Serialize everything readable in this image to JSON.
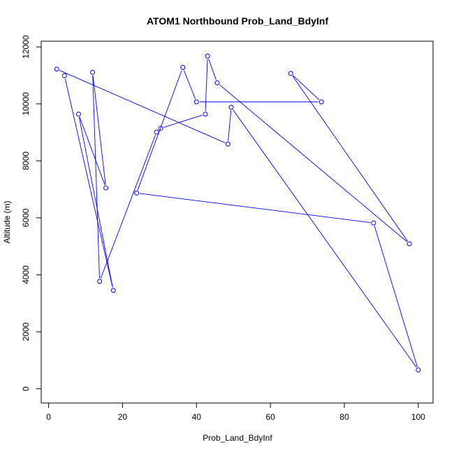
{
  "chart_data": {
    "type": "line",
    "title": "ATOM1 Northbound Prob_Land_BdyInf",
    "xlabel": "Prob_Land_BdyInf",
    "ylabel": "Altitude (m)",
    "xlim": [
      -2,
      104
    ],
    "ylim": [
      -500,
      12200
    ],
    "xticks": [
      0,
      20,
      40,
      60,
      80,
      100
    ],
    "yticks": [
      0,
      2000,
      4000,
      6000,
      8000,
      10000,
      12000
    ],
    "grid": false,
    "legend": "none",
    "series": [
      {
        "color": "#0000ff",
        "marker": "open-circle",
        "points": [
          {
            "x": 2.2,
            "y": 11220
          },
          {
            "x": 48.5,
            "y": 8590
          },
          {
            "x": 49.4,
            "y": 9880
          },
          {
            "x": 100.0,
            "y": 660
          },
          {
            "x": 87.9,
            "y": 5820
          },
          {
            "x": 23.8,
            "y": 6870
          },
          {
            "x": 36.3,
            "y": 11280
          },
          {
            "x": 40.0,
            "y": 10070
          },
          {
            "x": 73.8,
            "y": 10070
          },
          {
            "x": 65.5,
            "y": 11070
          },
          {
            "x": 97.6,
            "y": 5090
          },
          {
            "x": 45.6,
            "y": 10740
          },
          {
            "x": 43.0,
            "y": 11680
          },
          {
            "x": 42.4,
            "y": 9640
          },
          {
            "x": 30.3,
            "y": 9140
          },
          {
            "x": 29.2,
            "y": 9010
          },
          {
            "x": 13.8,
            "y": 3770
          },
          {
            "x": 11.9,
            "y": 11110
          },
          {
            "x": 15.5,
            "y": 7050
          },
          {
            "x": 8.1,
            "y": 9640
          },
          {
            "x": 17.5,
            "y": 3450
          },
          {
            "x": 4.3,
            "y": 10990
          }
        ]
      }
    ]
  }
}
